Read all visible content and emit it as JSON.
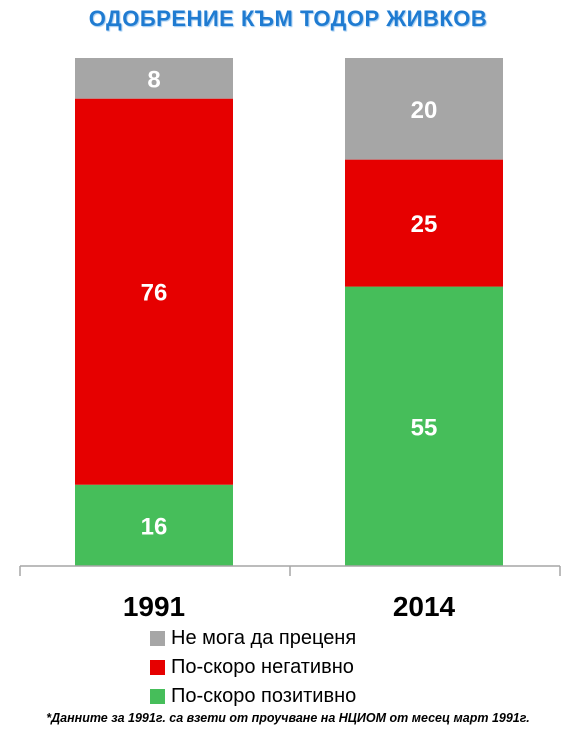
{
  "chart_data": {
    "type": "bar",
    "stacked": true,
    "title": "ОДОБРЕНИЕ КЪМ ТОДОР ЖИВКОВ",
    "categories": [
      "1991",
      "2014"
    ],
    "series": [
      {
        "name": "По-скоро позитивно",
        "values": [
          16,
          55
        ],
        "color": "#46be5a"
      },
      {
        "name": "По-скоро негативно",
        "values": [
          76,
          25
        ],
        "color": "#e60000"
      },
      {
        "name": "Не мога да преценя",
        "values": [
          8,
          20
        ],
        "color": "#a6a6a6"
      }
    ],
    "ylim": [
      0,
      100
    ],
    "grid": false,
    "legend_position": "bottom"
  },
  "legend": [
    {
      "label": "Не мога да преценя",
      "color": "#a6a6a6"
    },
    {
      "label": "По-скоро негативно",
      "color": "#e60000"
    },
    {
      "label": "По-скоро позитивно",
      "color": "#46be5a"
    }
  ],
  "footnote": "*Данните за 1991г. са взети от проучване на НЦИОМ от месец  март 1991г."
}
